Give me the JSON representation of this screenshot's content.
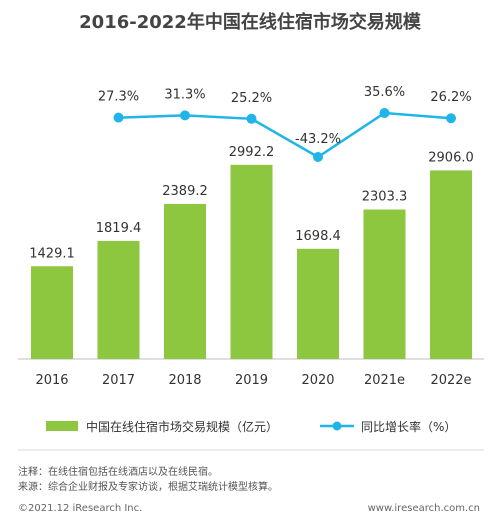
{
  "title": "2016-2022年中国在线住宿市场交易规模",
  "notes": {
    "note": "注释：在线住宿包括在线酒店以及在线民宿。",
    "source": "来源：综合企业财报及专家访谈，根据艾瑞统计模型核算。"
  },
  "footer": {
    "copyright": "©2021.12 iResearch Inc.",
    "url": "www.iresearch.com.cn"
  },
  "colors": {
    "bar": "#8DC63F",
    "line": "#1FB5E8",
    "text": "#333333"
  },
  "chart_data": {
    "type": "bar",
    "categories": [
      "2016",
      "2017",
      "2018",
      "2019",
      "2020",
      "2021e",
      "2022e"
    ],
    "series": [
      {
        "name": "中国在线住宿市场交易规模（亿元）",
        "type": "bar",
        "values": [
          1429.1,
          1819.4,
          2389.2,
          2992.2,
          1698.4,
          2303.3,
          2906.0
        ],
        "labels": [
          "1429.1",
          "1819.4",
          "2389.2",
          "2992.2",
          "1698.4",
          "2303.3",
          "2906.0"
        ]
      },
      {
        "name": "同比增长率（%）",
        "type": "line",
        "values": [
          null,
          27.3,
          31.3,
          25.2,
          -43.2,
          35.6,
          26.2
        ],
        "labels": [
          "",
          "27.3%",
          "31.3%",
          "25.2%",
          "-43.2%",
          "35.6%",
          "26.2%"
        ]
      }
    ],
    "legend_position": "bottom",
    "grid": false
  }
}
